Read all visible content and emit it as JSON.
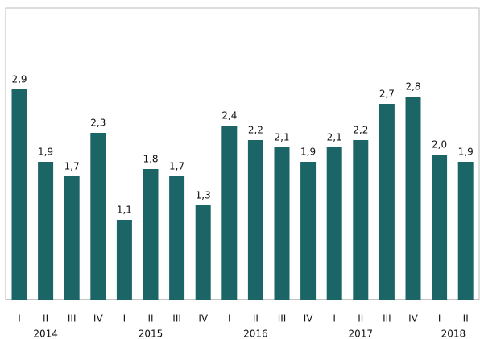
{
  "chart_data": {
    "type": "bar",
    "categories": [
      "I",
      "II",
      "III",
      "IV",
      "I",
      "II",
      "III",
      "IV",
      "I",
      "II",
      "III",
      "IV",
      "I",
      "II",
      "III",
      "IV",
      "I",
      "II"
    ],
    "group_labels": [
      "2014",
      "2015",
      "2016",
      "2017",
      "2018"
    ],
    "values": [
      2.9,
      1.9,
      1.7,
      2.3,
      1.1,
      1.8,
      1.7,
      1.3,
      2.4,
      2.2,
      2.1,
      1.9,
      2.1,
      2.2,
      2.7,
      2.8,
      2.0,
      1.9
    ],
    "value_labels": [
      "2,9",
      "1,9",
      "1,7",
      "2,3",
      "1,1",
      "1,8",
      "1,7",
      "1,3",
      "2,4",
      "2,2",
      "2,1",
      "1,9",
      "2,1",
      "2,2",
      "2,7",
      "2,8",
      "2,0",
      "1,9"
    ],
    "color": "#1b6567",
    "ylim": [
      0,
      4
    ]
  }
}
